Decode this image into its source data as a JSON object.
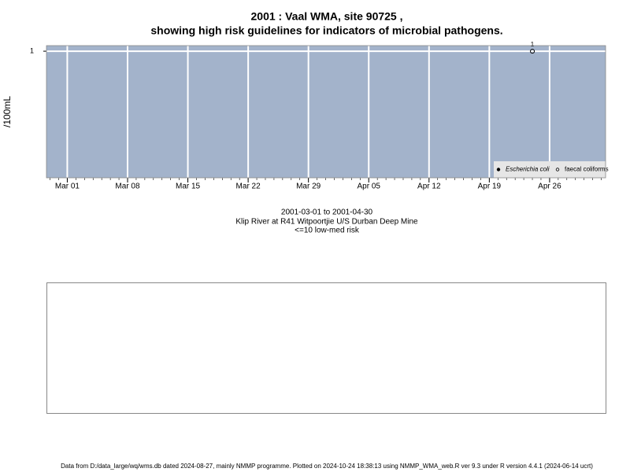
{
  "chart_data": {
    "type": "scatter",
    "title": "2001 : Vaal WMA, site 90725 ,",
    "title2": "showing high risk guidelines for indicators of microbial pathogens.",
    "ylabel": "/100mL",
    "x": [
      "2001-04-24"
    ],
    "series": [
      {
        "name": "Escherichia coli",
        "color": "#000000",
        "marker": "filled",
        "values": [
          null
        ]
      },
      {
        "name": "faecal coliforms",
        "color": "#000000",
        "marker": "open",
        "values": [
          1
        ]
      }
    ],
    "xlim": [
      "2001-02-26T14:00",
      "2001-05-02T12:00"
    ],
    "xticks": [
      {
        "value": "2001-03-01",
        "label": "Mar 01"
      },
      {
        "value": "2001-03-08",
        "label": "Mar 08"
      },
      {
        "value": "2001-03-15",
        "label": "Mar 15"
      },
      {
        "value": "2001-03-22",
        "label": "Mar 22"
      },
      {
        "value": "2001-03-29",
        "label": "Mar 29"
      },
      {
        "value": "2001-04-05",
        "label": "Apr 05"
      },
      {
        "value": "2001-04-12",
        "label": "Apr 12"
      },
      {
        "value": "2001-04-19",
        "label": "Apr 19"
      },
      {
        "value": "2001-04-26",
        "label": "Apr 26"
      }
    ],
    "ylim": [
      0,
      1.044
    ],
    "yticks": [
      1
    ],
    "grid": true,
    "legend": "bottom-right",
    "background": "#a3b3cb",
    "caption": [
      "2001-03-01 to 2001-04-30",
      "Klip River at R41 Witpoortjie U/S Durban Deep Mine",
      "<=10 low-med risk"
    ],
    "footer": "Data from D:/data_large/wq/wms.db dated 2024-08-27, mainly NMMP programme. Plotted on 2024-10-24 18:38:13 using NMMP_WMA_web.R ver 9.3 under R version 4.4.1 (2024-06-14 ucrt)"
  }
}
